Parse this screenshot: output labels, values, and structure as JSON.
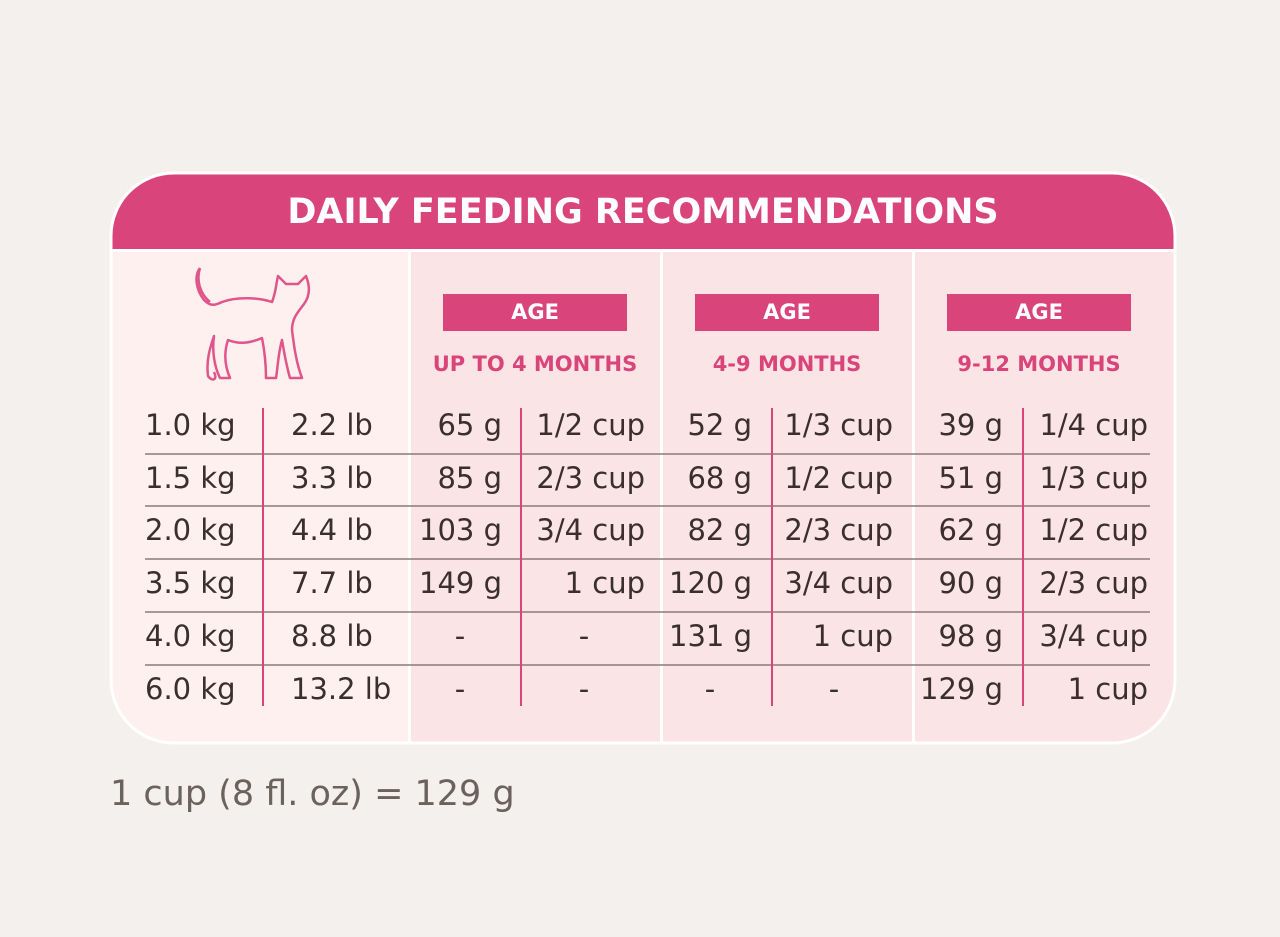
{
  "title": "DAILY FEEDING RECOMMENDATIONS",
  "groups": [
    {
      "label": "AGE",
      "range": "UP TO 4 MONTHS"
    },
    {
      "label": "AGE",
      "range": "4-9 MONTHS"
    },
    {
      "label": "AGE",
      "range": "9-12 MONTHS"
    }
  ],
  "rows": [
    [
      "1.0 kg",
      "2.2 lb",
      "65 g",
      "1/2 cup",
      "52 g",
      "1/3 cup",
      "39 g",
      "1/4 cup"
    ],
    [
      "1.5 kg",
      "3.3 lb",
      "85 g",
      "2/3 cup",
      "68 g",
      "1/2 cup",
      "51 g",
      "1/3 cup"
    ],
    [
      "2.0 kg",
      "4.4 lb",
      "103 g",
      "3/4 cup",
      "82 g",
      "2/3 cup",
      "62 g",
      "1/2 cup"
    ],
    [
      "3.5 kg",
      "7.7 lb",
      "149 g",
      "1 cup",
      "120 g",
      "3/4 cup",
      "90 g",
      "2/3 cup"
    ],
    [
      "4.0 kg",
      "8.8 lb",
      "-",
      "-",
      "131 g",
      "1 cup",
      "98 g",
      "3/4 cup"
    ],
    [
      "6.0 kg",
      "13.2 lb",
      "-",
      "-",
      "-",
      "-",
      "129 g",
      "1 cup"
    ]
  ],
  "footnote": "1 cup (8 fl. oz)  = 129 g"
}
